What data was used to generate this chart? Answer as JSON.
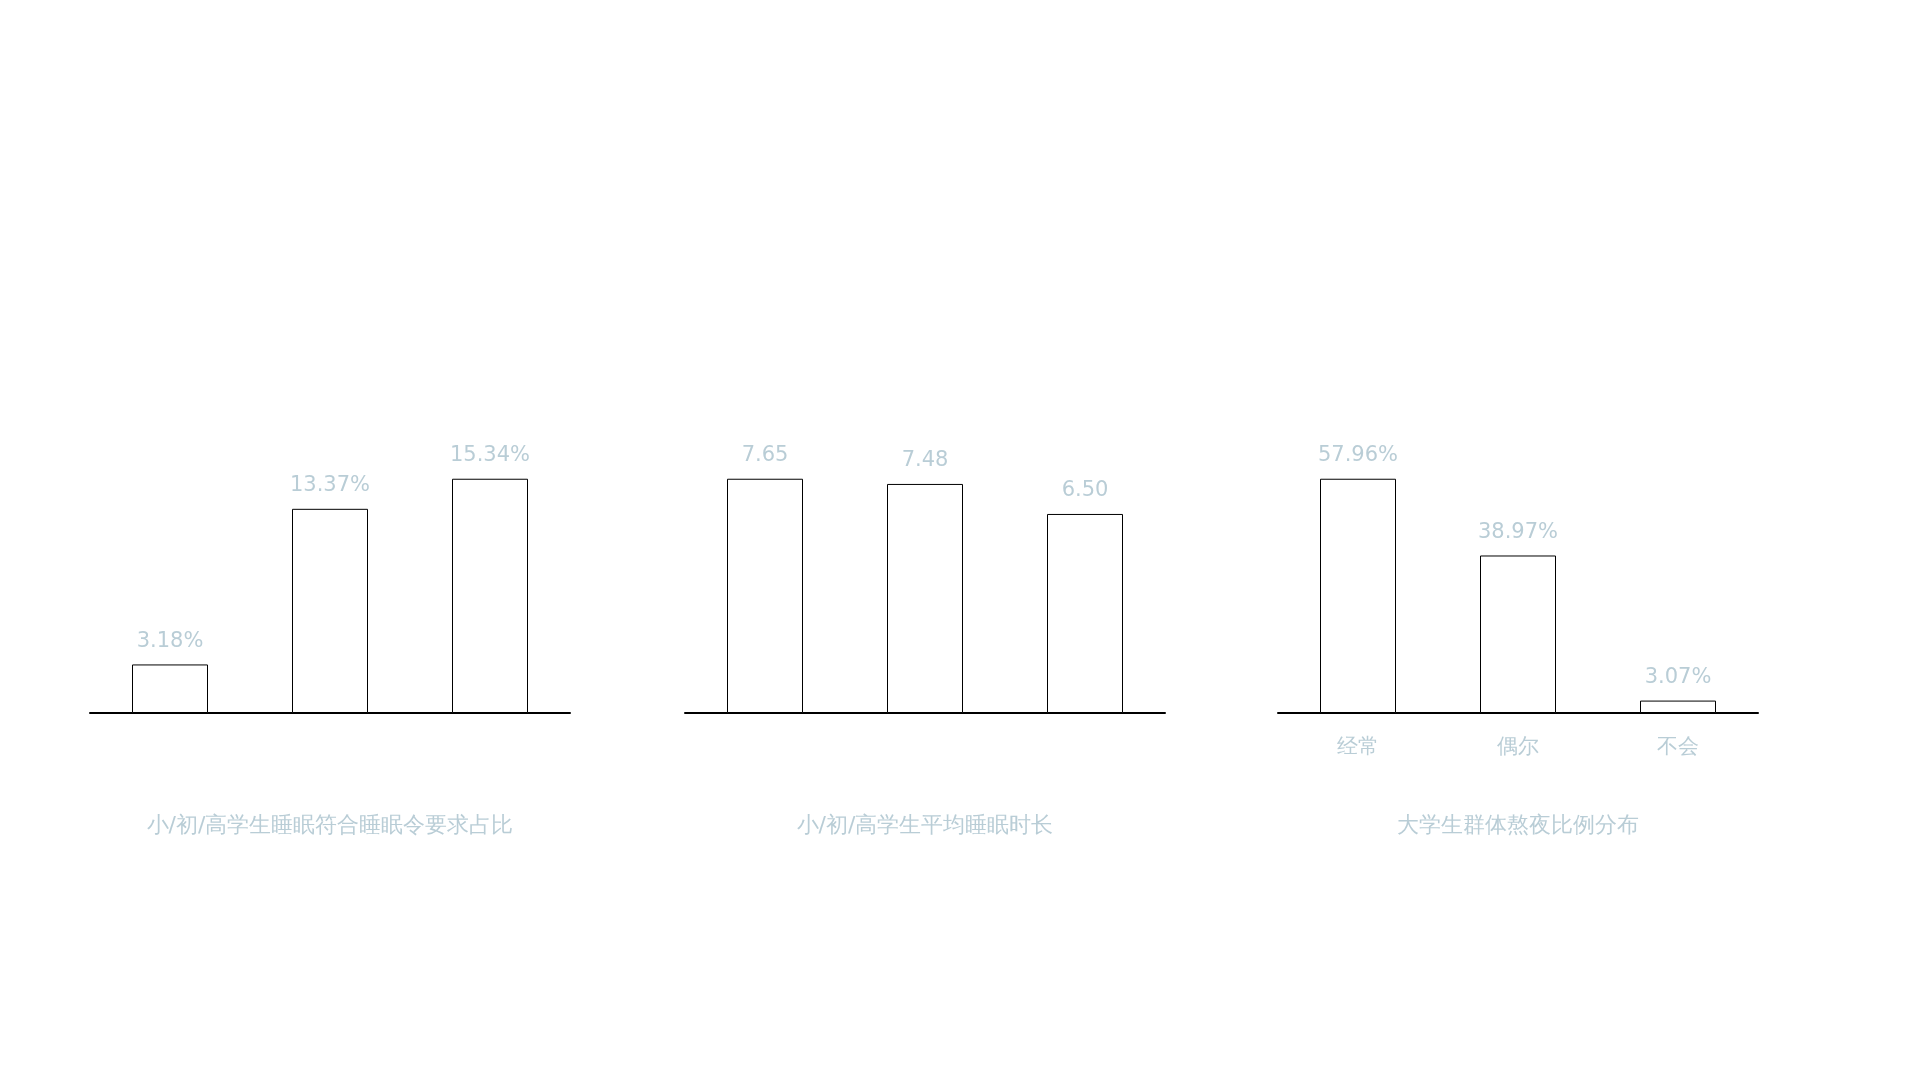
{
  "chart_data": [
    {
      "type": "bar",
      "title": "小/初/高学生睡眠符合睡眠令要求占比",
      "categories": [
        null,
        null,
        null
      ],
      "values": [
        3.18,
        13.37,
        15.34
      ],
      "value_labels": [
        "3.18%",
        "13.37%",
        "15.34%"
      ],
      "color": "#ffffff"
    },
    {
      "type": "bar",
      "title": "小/初/高学生平均睡眠时长",
      "categories": [
        null,
        null,
        null
      ],
      "values": [
        7.65,
        7.48,
        6.5
      ],
      "value_labels": [
        "7.65",
        "7.48",
        "6.50"
      ],
      "color": "#ffffff"
    },
    {
      "type": "bar",
      "title": "大学生群体熬夜比例分布",
      "categories": [
        "经常",
        "偶尔",
        "不会"
      ],
      "values": [
        57.96,
        38.97,
        3.07
      ],
      "value_labels": [
        "57.96%",
        "38.97%",
        "3.07%"
      ],
      "color": "#ffffff"
    }
  ]
}
